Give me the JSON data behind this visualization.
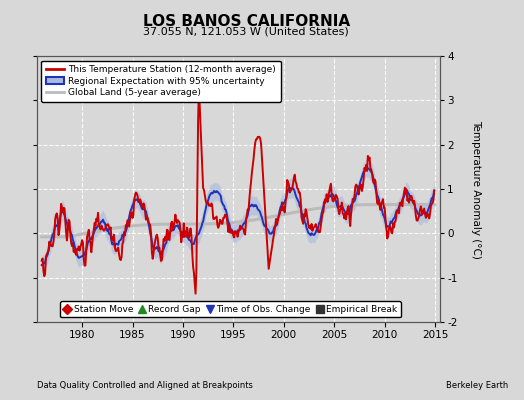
{
  "title": "LOS BANOS CALIFORNIA",
  "subtitle": "37.055 N, 121.053 W (United States)",
  "ylabel": "Temperature Anomaly (°C)",
  "footer_left": "Data Quality Controlled and Aligned at Breakpoints",
  "footer_right": "Berkeley Earth",
  "xlim": [
    1975.5,
    2015.5
  ],
  "ylim": [
    -2.0,
    4.0
  ],
  "yticks": [
    -2,
    -1,
    0,
    1,
    2,
    3,
    4
  ],
  "xticks": [
    1980,
    1985,
    1990,
    1995,
    2000,
    2005,
    2010,
    2015
  ],
  "bg_color": "#d8d8d8",
  "plot_bg_color": "#d8d8d8",
  "grid_color": "#ffffff",
  "red_color": "#cc0000",
  "blue_color": "#2233bb",
  "blue_fill_color": "#aabbdd",
  "gray_color": "#bbbbbb",
  "legend_items": [
    "This Temperature Station (12-month average)",
    "Regional Expectation with 95% uncertainty",
    "Global Land (5-year average)"
  ],
  "marker_legend": [
    {
      "marker": "D",
      "color": "#cc0000",
      "label": "Station Move"
    },
    {
      "marker": "^",
      "color": "#228822",
      "label": "Record Gap"
    },
    {
      "marker": "v",
      "color": "#2233bb",
      "label": "Time of Obs. Change"
    },
    {
      "marker": "s",
      "color": "#333333",
      "label": "Empirical Break"
    }
  ]
}
